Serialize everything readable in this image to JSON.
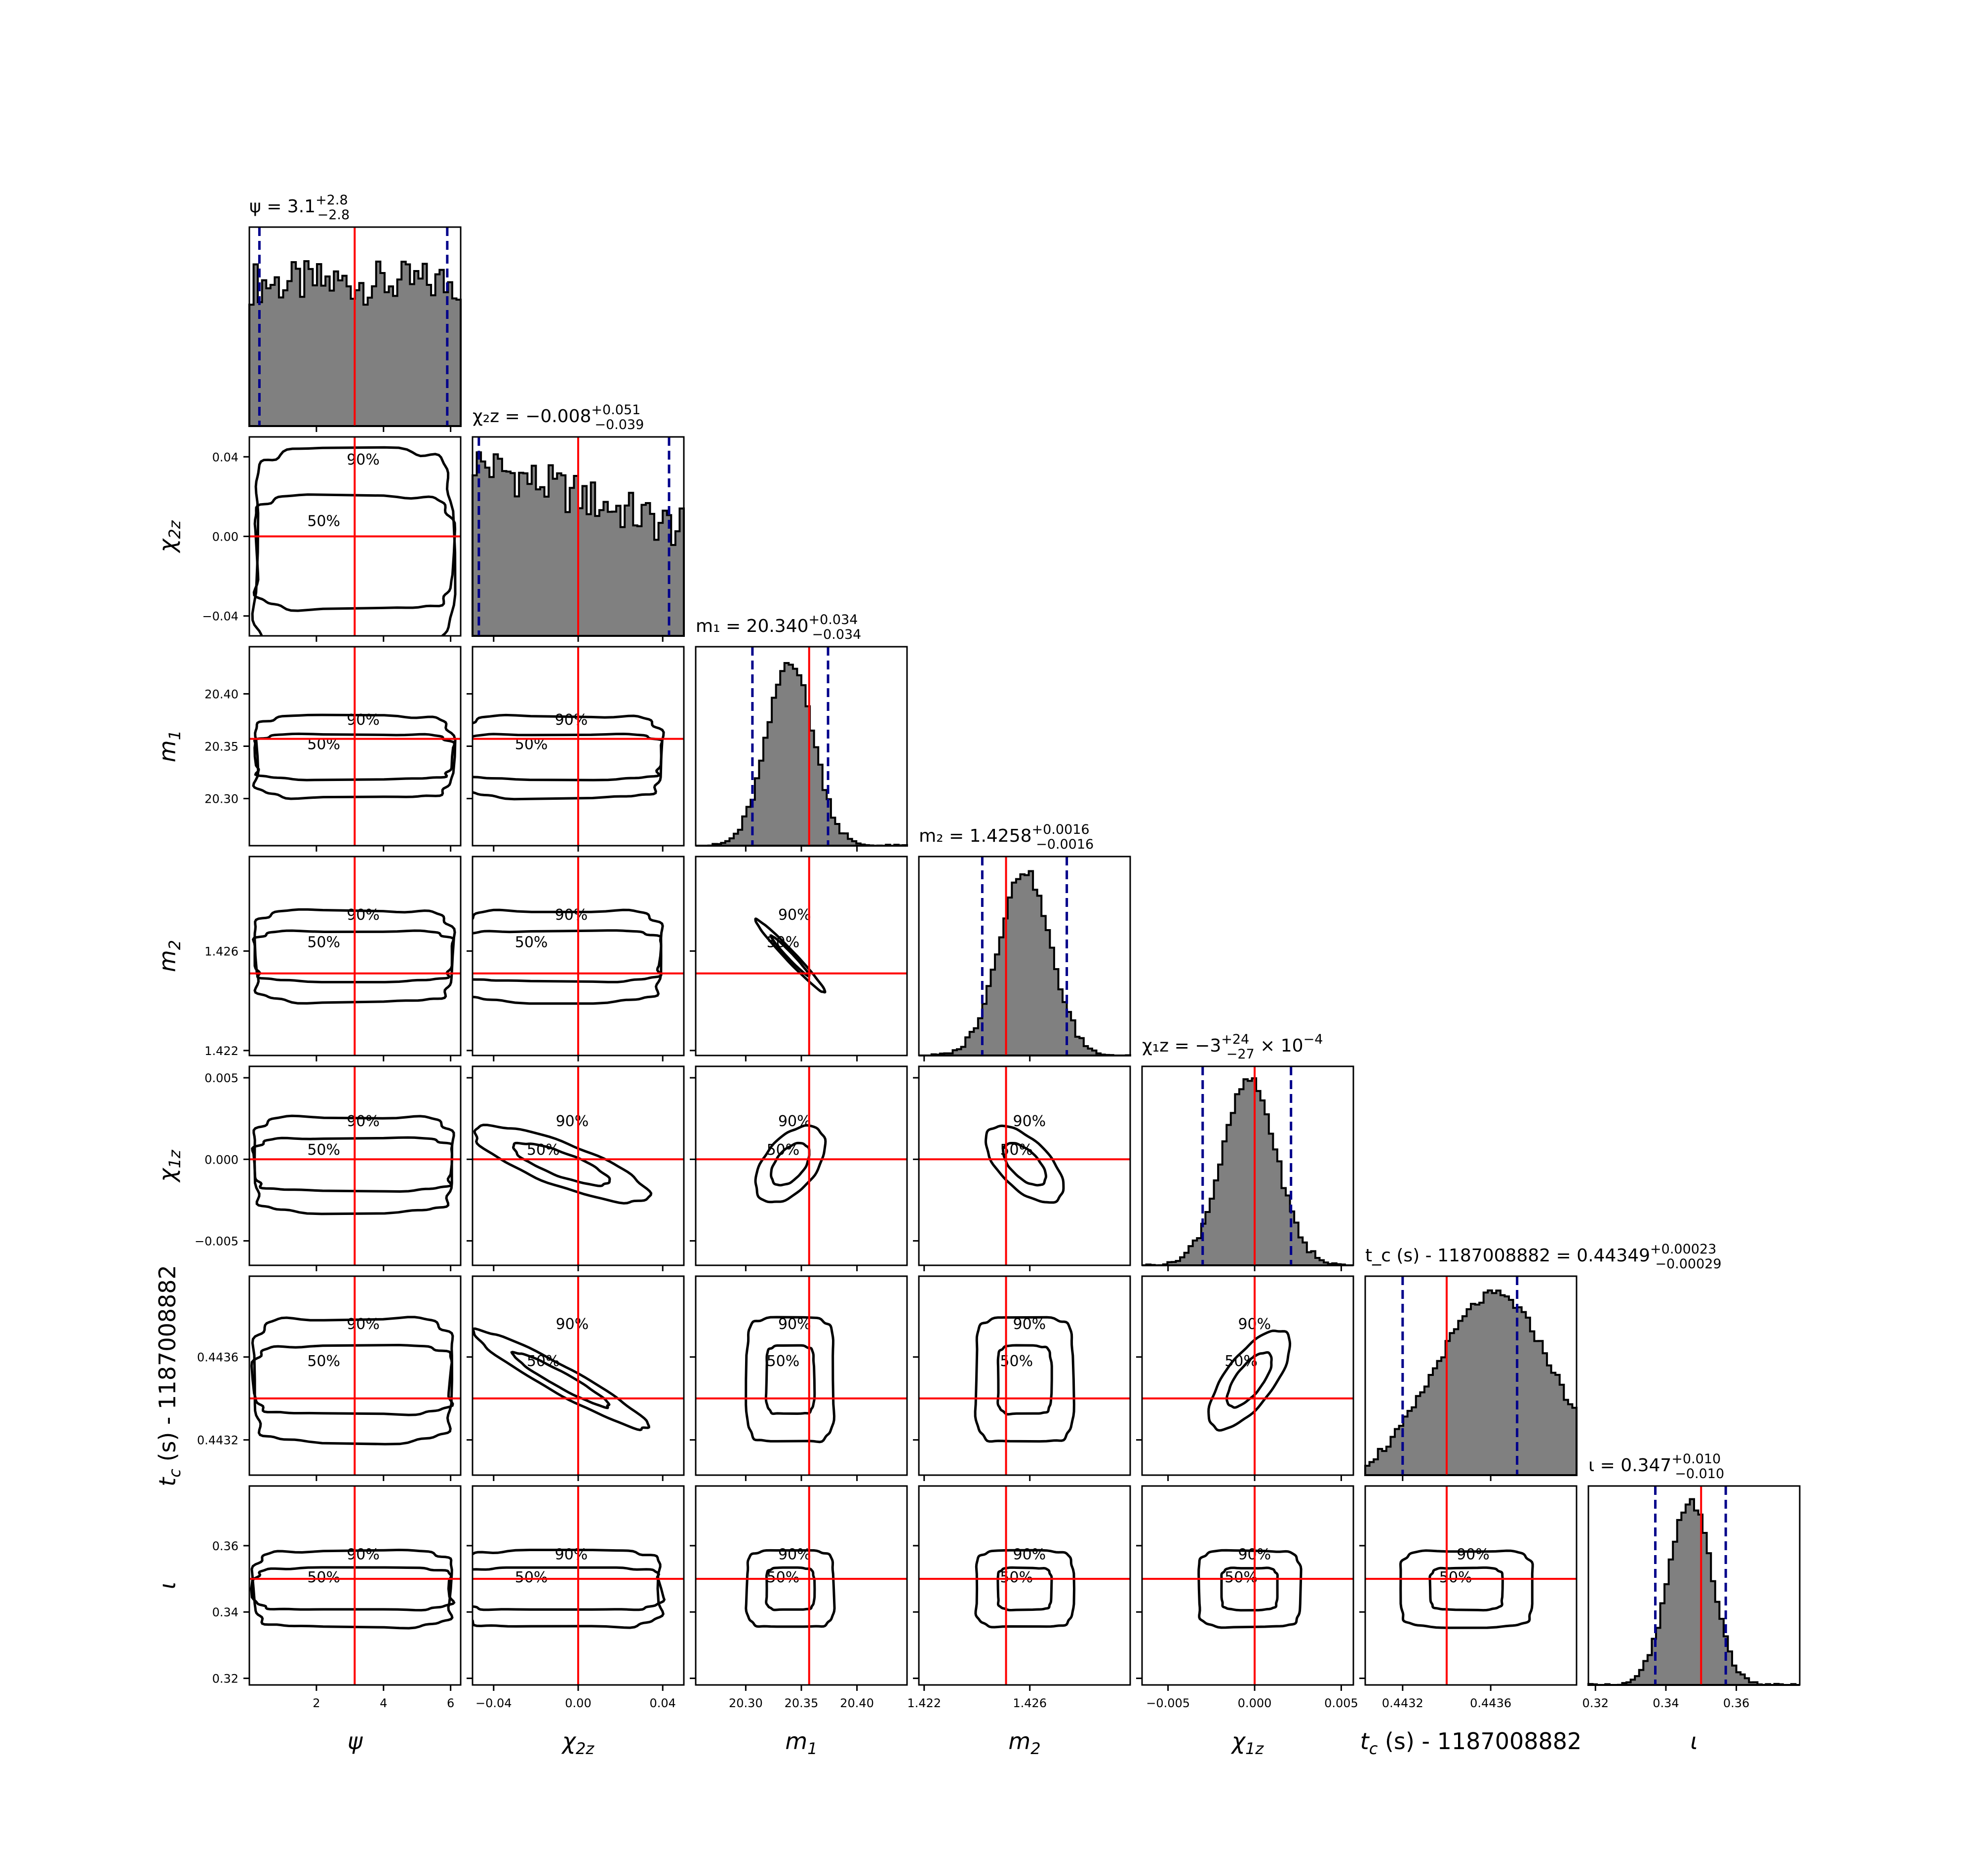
{
  "chart_data": {
    "type": "corner",
    "parameters": [
      {
        "key": "psi",
        "label": "ψ",
        "sub": "",
        "title": "ψ = 3.1",
        "title_sup": "+2.8",
        "title_sub": "−2.8",
        "range": [
          0.0,
          6.3
        ],
        "ticks": [
          2,
          4,
          6
        ],
        "tick_labels": [
          "2",
          "4",
          "6"
        ],
        "median": 3.1,
        "lower": 0.3,
        "upper": 5.9,
        "injection": 3.14,
        "hist_shape": "uniform",
        "contour_width": 0.47
      },
      {
        "key": "chi2z",
        "label": "χ",
        "sub": "2z",
        "title": "χ₂z = −0.008",
        "title_sup": "+0.051",
        "title_sub": "−0.039",
        "range": [
          -0.05,
          0.05
        ],
        "ticks": [
          -0.04,
          0.0,
          0.04
        ],
        "tick_labels": [
          "−0.04",
          "0.00",
          "0.04"
        ],
        "median": -0.008,
        "lower": -0.047,
        "upper": 0.043,
        "injection": 0.0,
        "hist_shape": "decreasing",
        "contour_width": 0.47
      },
      {
        "key": "m1",
        "label": "m",
        "sub": "1",
        "title": "m₁ = 20.340",
        "title_sup": "+0.034",
        "title_sub": "−0.034",
        "range": [
          20.255,
          20.445
        ],
        "ticks": [
          20.3,
          20.35,
          20.4
        ],
        "tick_labels": [
          "20.30",
          "20.35",
          "20.40"
        ],
        "median": 20.34,
        "lower": 20.306,
        "upper": 20.374,
        "injection": 20.357,
        "hist_shape": "gauss",
        "contour_width": 0.2
      },
      {
        "key": "m2",
        "label": "m",
        "sub": "2",
        "title": "m₂ = 1.4258",
        "title_sup": "+0.0016",
        "title_sub": "−0.0016",
        "range": [
          1.4218,
          1.4298
        ],
        "ticks": [
          1.422,
          1.426
        ],
        "tick_labels": [
          "1.422",
          "1.426"
        ],
        "median": 1.4258,
        "lower": 1.4242,
        "upper": 1.4274,
        "injection": 1.4251,
        "hist_shape": "gauss",
        "contour_width": 0.2
      },
      {
        "key": "chi1z",
        "label": "χ",
        "sub": "1z",
        "title": "χ₁z = −3",
        "title_sup": "+24",
        "title_sub": "−27",
        "title_suffix": "× 10",
        "title_suffix_exp": "−4",
        "range": [
          -0.0065,
          0.0057
        ],
        "ticks": [
          -0.005,
          0.0,
          0.005
        ],
        "tick_labels": [
          "−0.005",
          "0.000",
          "0.005"
        ],
        "median": -0.0003,
        "lower": -0.003,
        "upper": 0.0021,
        "injection": 0.0,
        "hist_shape": "gauss",
        "contour_width": 0.2
      },
      {
        "key": "tc",
        "label": "t",
        "sub": "c",
        "label_suffix": " (s) - 1187008882",
        "title": "t_c (s) - 1187008882 = 0.44349",
        "title_sup": "+0.00023",
        "title_sub": "−0.00029",
        "range": [
          0.44303,
          0.44399
        ],
        "ticks": [
          0.4432,
          0.4436
        ],
        "tick_labels": [
          "0.4432",
          "0.4436"
        ],
        "median": 0.44349,
        "lower": 0.4432,
        "upper": 0.44372,
        "injection": 0.4434,
        "hist_shape": "skew",
        "contour_width": 0.22
      },
      {
        "key": "iota",
        "label": "ι",
        "sub": "",
        "title": "ι = 0.347",
        "title_sup": "+0.010",
        "title_sub": "−0.010",
        "range": [
          0.318,
          0.378
        ],
        "ticks": [
          0.32,
          0.34,
          0.36
        ],
        "tick_labels": [
          "0.32",
          "0.34",
          "0.36"
        ],
        "median": 0.347,
        "lower": 0.337,
        "upper": 0.357,
        "injection": 0.35,
        "hist_shape": "gauss",
        "contour_width": 0.2
      }
    ],
    "histogram": {
      "fill_color": "#808080",
      "edge_color": "#000000",
      "quantile_line_color": "#00008b",
      "quantile_line_style": "dashed"
    },
    "contours": {
      "levels": [
        "50%",
        "90%"
      ],
      "line_color": "#000000",
      "correlations": [
        [],
        [
          0.0
        ],
        [
          0.0,
          0.0
        ],
        [
          0.0,
          0.0,
          -0.98
        ],
        [
          0.0,
          -0.8,
          0.5,
          -0.6
        ],
        [
          0.0,
          -0.95,
          0.0,
          0.0,
          0.7
        ],
        [
          0.0,
          0.0,
          0.0,
          0.0,
          0.0,
          0.0
        ]
      ]
    },
    "injection_line_color": "#ff0000",
    "grid": false,
    "legend": "none"
  }
}
